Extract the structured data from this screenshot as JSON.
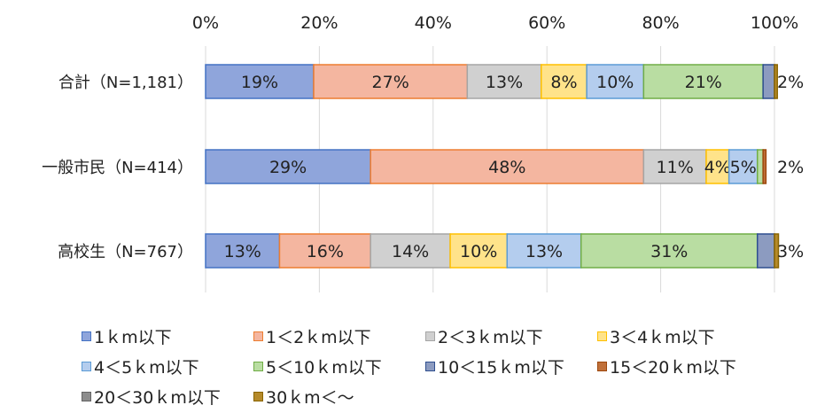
{
  "chart_data": {
    "type": "bar",
    "orientation": "horizontal",
    "stacked": true,
    "percent": true,
    "xlim": [
      0,
      100
    ],
    "xticks": [
      "0%",
      "20%",
      "40%",
      "60%",
      "80%",
      "100%"
    ],
    "categories": [
      "合計（N=1,181）",
      "一般市民（N=414）",
      "高校生（N=767）"
    ],
    "grid": true,
    "legend_position": "bottom",
    "series": [
      {
        "name": "1ｋm以下",
        "color": "#8FA5DB",
        "edge": "#4472C4",
        "values": [
          19,
          29,
          13
        ],
        "labels": [
          "19%",
          "29%",
          "13%"
        ]
      },
      {
        "name": "1＜2ｋm以下",
        "color": "#F4B6A0",
        "edge": "#ED7D31",
        "values": [
          27,
          48,
          16
        ],
        "labels": [
          "27%",
          "48%",
          "16%"
        ]
      },
      {
        "name": "2＜3ｋm以下",
        "color": "#D0D0D0",
        "edge": "#A5A5A5",
        "values": [
          13,
          11,
          14
        ],
        "labels": [
          "13%",
          "11%",
          "14%"
        ]
      },
      {
        "name": "3＜4ｋm以下",
        "color": "#FFE38A",
        "edge": "#FFC000",
        "values": [
          8,
          4,
          10
        ],
        "labels": [
          "8%",
          "4%",
          "10%"
        ]
      },
      {
        "name": "4＜5ｋm以下",
        "color": "#B4CDEE",
        "edge": "#5B9BD5",
        "values": [
          10,
          5,
          13
        ],
        "labels": [
          "10%",
          "5%",
          "13%"
        ]
      },
      {
        "name": "5＜10ｋm以下",
        "color": "#B9DDA2",
        "edge": "#70AD47",
        "values": [
          21,
          1,
          31
        ],
        "labels": [
          "21%",
          "",
          "31%"
        ]
      },
      {
        "name": "10＜15ｋm以下",
        "color": "#8C9BC0",
        "edge": "#2F4F8F",
        "values": [
          2,
          0,
          3
        ],
        "labels": [
          "",
          "",
          ""
        ]
      },
      {
        "name": "15＜20ｋm以下",
        "color": "#C0703A",
        "edge": "#9E480E",
        "values": [
          0,
          0.5,
          0
        ],
        "labels": [
          "",
          "",
          ""
        ]
      },
      {
        "name": "20＜30ｋm以下",
        "color": "#8C8C8C",
        "edge": "#636363",
        "values": [
          0,
          0,
          0
        ],
        "labels": [
          "",
          "",
          ""
        ]
      },
      {
        "name": "30ｋm＜～",
        "color": "#B58A2A",
        "edge": "#8A6500",
        "values": [
          0.5,
          0,
          0.7
        ],
        "labels": [
          "",
          "",
          ""
        ]
      }
    ],
    "outside_labels": [
      "2%",
      "2%",
      "3%"
    ]
  }
}
